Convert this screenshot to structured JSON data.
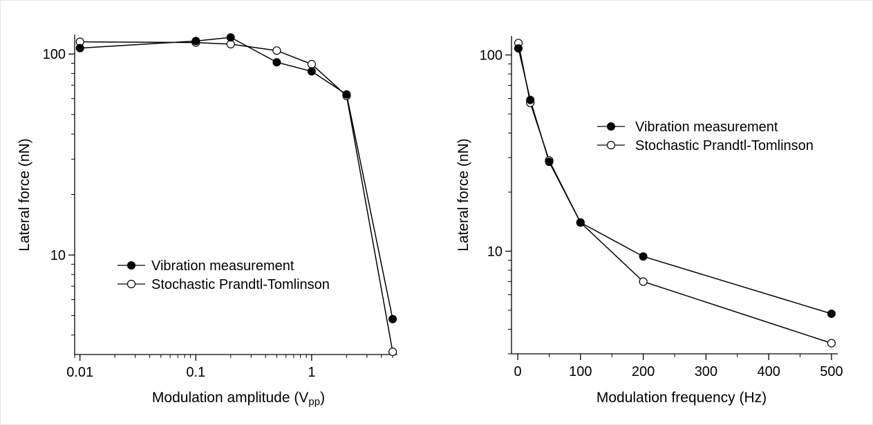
{
  "chart_data": [
    {
      "type": "line",
      "xscale": "log",
      "yscale": "log",
      "xlabel": "Modulation amplitude (V",
      "xlabel_sub": "pp",
      "xlabel_end": ")",
      "ylabel": "Lateral force (nN)",
      "xlim": [
        0.009,
        5.5
      ],
      "ylim": [
        3.2,
        125
      ],
      "xticks": [
        0.01,
        0.1,
        1
      ],
      "xtick_labels": [
        "0.01",
        "0.1",
        "1"
      ],
      "yticks": [
        10,
        100
      ],
      "ytick_labels": [
        "10",
        "100"
      ],
      "grid": false,
      "legend_position": "lower-left",
      "series": [
        {
          "name": "Vibration measurement",
          "marker": "filled-circle",
          "color": "#000000",
          "x": [
            0.01,
            0.1,
            0.2,
            0.5,
            1,
            2,
            5
          ],
          "y": [
            107,
            116,
            121,
            91,
            82,
            63,
            4.8
          ]
        },
        {
          "name": "Stochastic Prandtl-Tomlinson",
          "marker": "open-circle",
          "color": "#000000",
          "x": [
            0.01,
            0.1,
            0.2,
            0.5,
            1,
            2,
            5
          ],
          "y": [
            115,
            114,
            112,
            104,
            89,
            62,
            3.3
          ]
        }
      ]
    },
    {
      "type": "line",
      "xscale": "linear",
      "yscale": "log",
      "xlabel": "Modulation frequency (Hz)",
      "ylabel": "Lateral force (nN)",
      "xlim": [
        -10,
        510
      ],
      "ylim": [
        3.0,
        125
      ],
      "xticks": [
        0,
        100,
        200,
        300,
        400,
        500
      ],
      "xtick_labels": [
        "0",
        "100",
        "200",
        "300",
        "400",
        "500"
      ],
      "yticks": [
        10,
        100
      ],
      "ytick_labels": [
        "10",
        "100"
      ],
      "grid": false,
      "legend_position": "top-center",
      "series": [
        {
          "name": "Vibration measurement",
          "marker": "filled-circle",
          "color": "#000000",
          "x": [
            1,
            20,
            50,
            100,
            200,
            500
          ],
          "y": [
            108,
            59,
            28.5,
            14,
            9.4,
            4.8
          ]
        },
        {
          "name": "Stochastic Prandtl-Tomlinson",
          "marker": "open-circle",
          "color": "#000000",
          "x": [
            1,
            20,
            50,
            100,
            200,
            500
          ],
          "y": [
            115,
            57,
            29,
            14,
            7,
            3.4
          ]
        }
      ]
    }
  ]
}
